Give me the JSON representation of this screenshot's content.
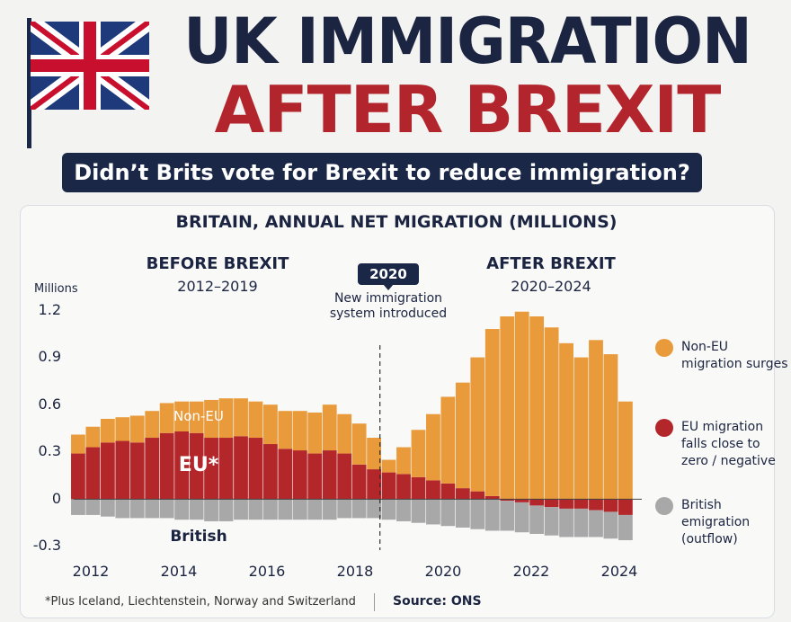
{
  "header": {
    "title_line1": "UK IMMIGRATION",
    "title_line2": "AFTER BREXIT",
    "question": "Didn’t Brits vote for Brexit to reduce immigration?"
  },
  "chart_data": {
    "type": "bar",
    "title": "BRITAIN, ANNUAL NET MIGRATION (MILLIONS)",
    "ylabel": "Millions",
    "ylim": [
      -0.3,
      1.2
    ],
    "yticks": [
      "1.2",
      "0.9",
      "0.6",
      "0.3",
      "0",
      "-0.3"
    ],
    "xticks": [
      "2012",
      "2014",
      "2016",
      "2018",
      "2020",
      "2022",
      "2024"
    ],
    "x_range": [
      2011.9,
      2024.7
    ],
    "stacked": true,
    "categories": [
      2012.0,
      2012.333,
      2012.667,
      2013.0,
      2013.333,
      2013.667,
      2014.0,
      2014.333,
      2014.667,
      2015.0,
      2015.333,
      2015.667,
      2016.0,
      2016.333,
      2016.667,
      2017.0,
      2017.333,
      2017.667,
      2018.0,
      2018.333,
      2018.667,
      2019.0,
      2019.333,
      2019.667,
      2020.0,
      2020.333,
      2020.667,
      2021.0,
      2021.333,
      2021.667,
      2022.0,
      2022.333,
      2022.667,
      2023.0,
      2023.333,
      2023.667,
      2024.0,
      2024.333
    ],
    "series": [
      {
        "name": "EU",
        "color": "#b3262a",
        "values": [
          0.29,
          0.33,
          0.36,
          0.37,
          0.36,
          0.39,
          0.42,
          0.43,
          0.42,
          0.39,
          0.39,
          0.4,
          0.39,
          0.35,
          0.32,
          0.31,
          0.29,
          0.31,
          0.29,
          0.22,
          0.19,
          0.17,
          0.16,
          0.14,
          0.12,
          0.1,
          0.07,
          0.05,
          0.02,
          -0.01,
          -0.02,
          -0.04,
          -0.05,
          -0.06,
          -0.06,
          -0.07,
          -0.08,
          -0.1
        ]
      },
      {
        "name": "Non-EU",
        "color": "#e99a3a",
        "values": [
          0.12,
          0.13,
          0.15,
          0.15,
          0.17,
          0.17,
          0.19,
          0.19,
          0.2,
          0.24,
          0.25,
          0.24,
          0.23,
          0.25,
          0.24,
          0.25,
          0.26,
          0.29,
          0.25,
          0.26,
          0.2,
          0.08,
          0.17,
          0.3,
          0.42,
          0.55,
          0.67,
          0.85,
          1.06,
          1.16,
          1.19,
          1.16,
          1.09,
          0.99,
          0.9,
          1.01,
          0.92,
          0.62
        ]
      },
      {
        "name": "British",
        "color": "#a8a8a8",
        "values": [
          -0.1,
          -0.1,
          -0.11,
          -0.12,
          -0.12,
          -0.12,
          -0.12,
          -0.13,
          -0.13,
          -0.14,
          -0.14,
          -0.13,
          -0.13,
          -0.13,
          -0.13,
          -0.13,
          -0.13,
          -0.13,
          -0.12,
          -0.12,
          -0.12,
          -0.13,
          -0.14,
          -0.15,
          -0.16,
          -0.17,
          -0.18,
          -0.19,
          -0.2,
          -0.19,
          -0.19,
          -0.18,
          -0.18,
          -0.18,
          -0.18,
          -0.17,
          -0.17,
          -0.16
        ]
      }
    ],
    "inline_labels": {
      "non_eu": "Non-EU",
      "eu": "EU*",
      "british": "British"
    },
    "annotation": {
      "year": 2019.0,
      "badge": "2020",
      "text": "New immigration system introduced"
    }
  },
  "phases": {
    "before_title": "BEFORE BREXIT",
    "before_years": "2012–2019",
    "after_title": "AFTER BREXIT",
    "after_years": "2020–2024"
  },
  "legend": [
    {
      "label": "Non-EU migration surges",
      "color": "#e99a3a"
    },
    {
      "label": "EU migration falls close to zero / negative",
      "color": "#b3262a"
    },
    {
      "label": "British emigration (outflow)",
      "color": "#a8a8a8"
    }
  ],
  "footer": {
    "note": "*Plus Iceland, Liechtenstein, Norway and Switzerland",
    "source": "Source: ONS"
  }
}
